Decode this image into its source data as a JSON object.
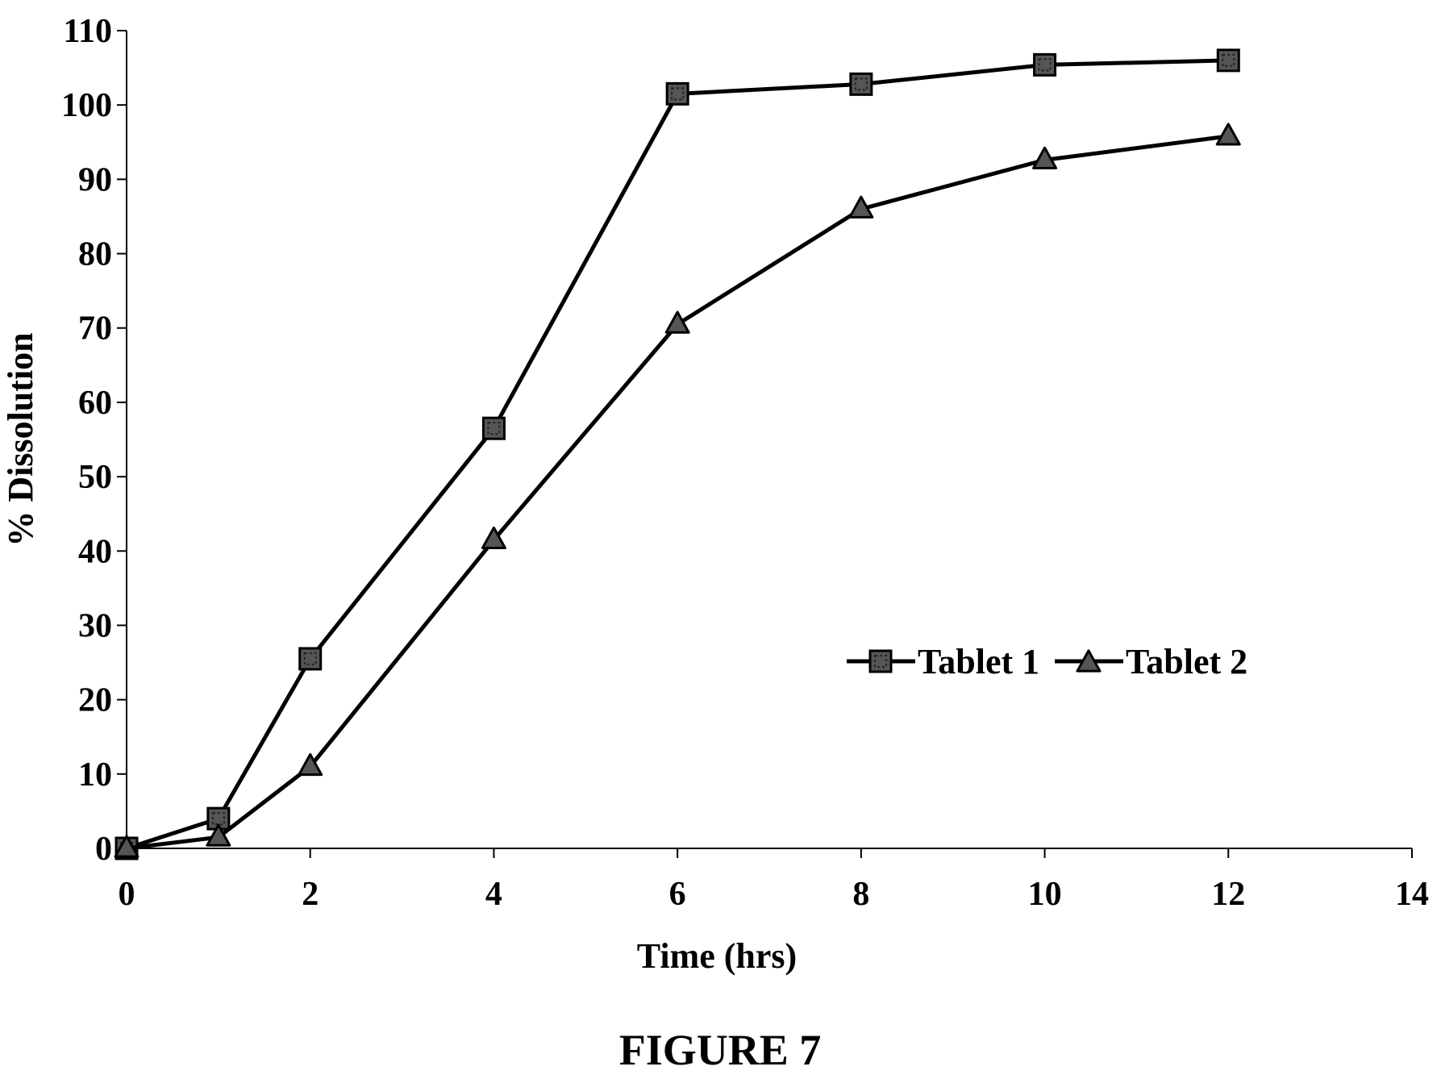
{
  "chart_data": {
    "type": "line",
    "title": "",
    "xlabel": "Time (hrs)",
    "ylabel": "% Dissolution",
    "xlim": [
      0,
      14
    ],
    "ylim": [
      0,
      110
    ],
    "xticks": [
      0,
      2,
      4,
      6,
      8,
      10,
      12,
      14
    ],
    "yticks": [
      0,
      10,
      20,
      30,
      40,
      50,
      60,
      70,
      80,
      90,
      100,
      110
    ],
    "grid": false,
    "legend_position": "center-right",
    "series": [
      {
        "name": "Tablet 1",
        "marker": "square",
        "x": [
          0,
          1,
          2,
          4,
          6,
          8,
          10,
          12
        ],
        "y": [
          0,
          4,
          25.5,
          56.5,
          101.5,
          102.8,
          105.4,
          106
        ]
      },
      {
        "name": "Tablet 2",
        "marker": "triangle",
        "x": [
          0,
          1,
          2,
          4,
          6,
          8,
          10,
          12
        ],
        "y": [
          0,
          1.5,
          11,
          41.5,
          70.5,
          86,
          92.6,
          95.8
        ]
      }
    ]
  },
  "caption": "FIGURE 7",
  "colors": {
    "ink": "#000000",
    "marker_fill": "#555555",
    "background": "#ffffff"
  }
}
